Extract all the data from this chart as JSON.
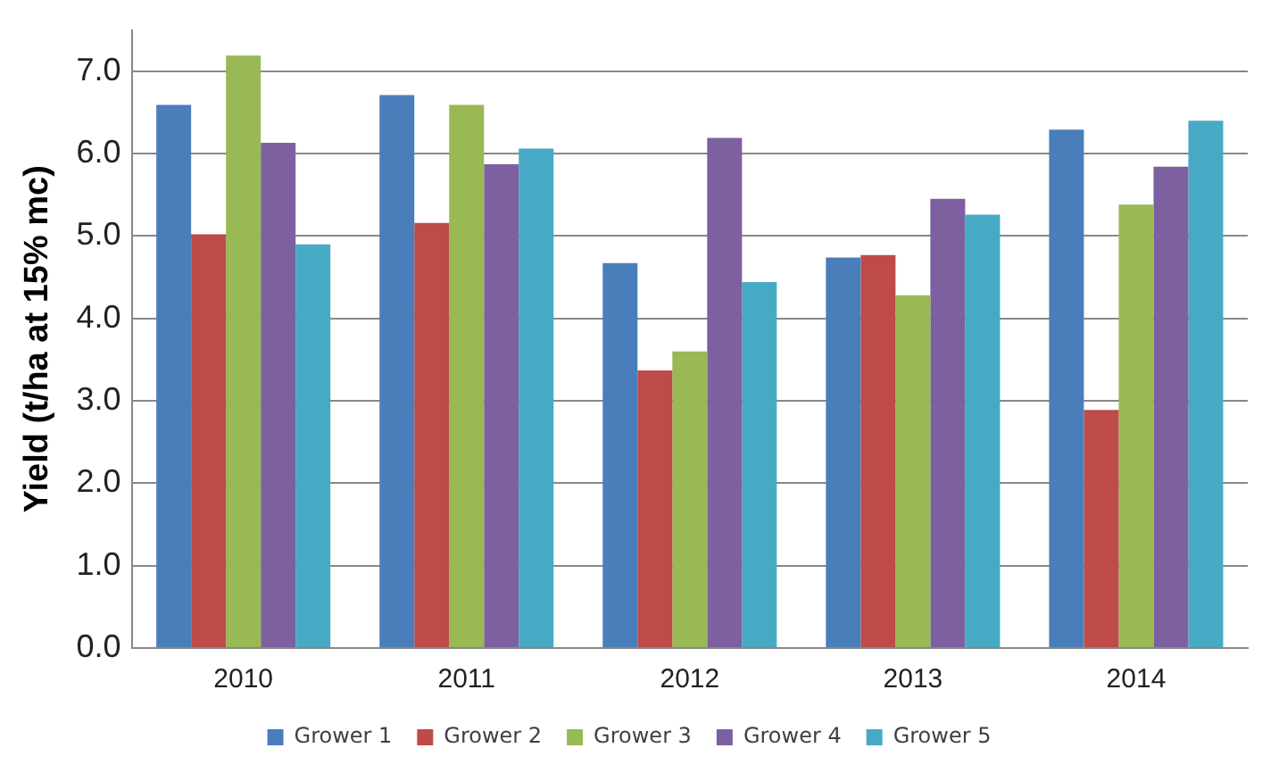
{
  "chart_data": {
    "type": "bar",
    "ylabel": "Yield (t/ha at 15% mc)",
    "categories": [
      "2010",
      "2011",
      "2012",
      "2013",
      "2014"
    ],
    "series": [
      {
        "name": "Grower 1",
        "color": "#4a7ebb",
        "values": [
          6.59,
          6.71,
          4.67,
          4.74,
          6.29
        ]
      },
      {
        "name": "Grower 2",
        "color": "#be4b48",
        "values": [
          5.02,
          5.16,
          3.37,
          4.77,
          2.89
        ]
      },
      {
        "name": "Grower 3",
        "color": "#98b954",
        "values": [
          7.19,
          6.59,
          3.6,
          4.28,
          5.38
        ]
      },
      {
        "name": "Grower 4",
        "color": "#7d60a0",
        "values": [
          6.13,
          5.87,
          6.19,
          5.45,
          5.84
        ]
      },
      {
        "name": "Grower 5",
        "color": "#46aac5",
        "values": [
          4.9,
          6.06,
          4.44,
          5.26,
          6.4
        ]
      }
    ],
    "ylim": [
      0,
      7.5
    ],
    "yticks": [
      {
        "value": 0,
        "label": "0.0"
      },
      {
        "value": 1,
        "label": "1.0"
      },
      {
        "value": 2,
        "label": "2.0"
      },
      {
        "value": 3,
        "label": "3.0"
      },
      {
        "value": 4,
        "label": "4.0"
      },
      {
        "value": 5,
        "label": "5.0"
      },
      {
        "value": 6,
        "label": "6.0"
      },
      {
        "value": 7,
        "label": "7.0"
      }
    ],
    "grid": "y",
    "legend": "bottom"
  }
}
